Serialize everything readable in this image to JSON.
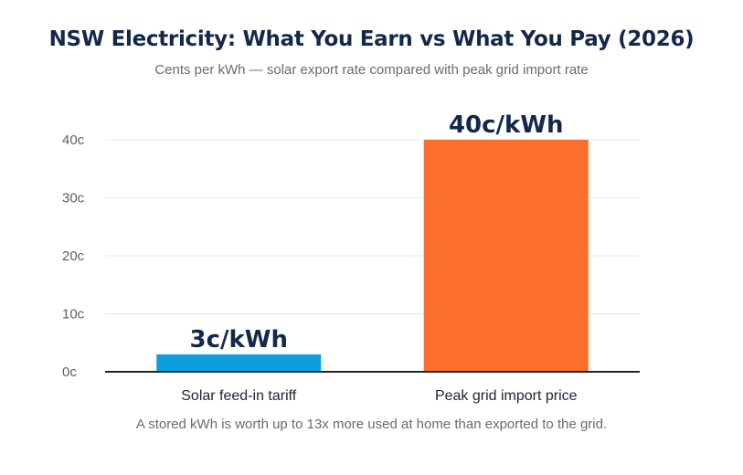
{
  "title": "NSW Electricity: What You Earn vs What You Pay (2026)",
  "subtitle": "Cents per kWh — solar export rate compared with peak grid import rate",
  "footnote": "A stored kWh is worth up to 13x more used at home than exported to the grid.",
  "chart_data": {
    "type": "bar",
    "categories": [
      "Solar feed-in tariff",
      "Peak grid import price"
    ],
    "values": [
      3,
      40
    ],
    "data_labels": [
      "3c/kWh",
      "40c/kWh"
    ],
    "colors": [
      "#0b9fe0",
      "#fb6f2a"
    ],
    "y_ticks": [
      0,
      10,
      20,
      30,
      40
    ],
    "y_tick_labels": [
      "0c",
      "10c",
      "20c",
      "30c",
      "40c"
    ],
    "ylim": [
      0,
      40
    ],
    "grid": true,
    "legend": "none",
    "xlabel": "",
    "ylabel": ""
  }
}
